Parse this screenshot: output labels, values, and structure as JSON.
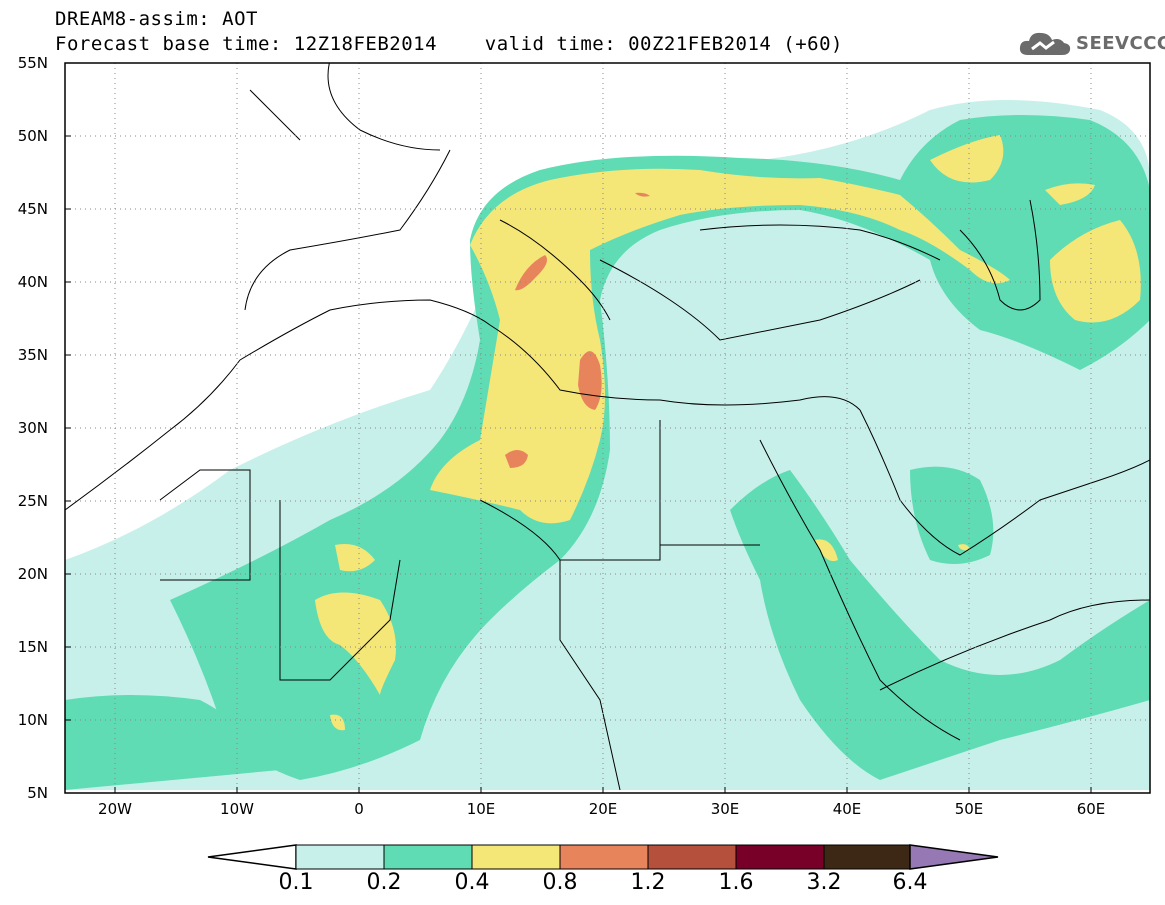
{
  "title": {
    "line1": "DREAM8-assim: AOT",
    "line2": "Forecast base time: 12Z18FEB2014    valid time: 00Z21FEB2014 (+60)"
  },
  "logo": {
    "text": "SEEVCCC",
    "icon": "cloud-icon",
    "color": "#6b6b6b"
  },
  "map": {
    "lat_labels": [
      "55N",
      "50N",
      "45N",
      "40N",
      "35N",
      "30N",
      "25N",
      "20N",
      "15N",
      "10N",
      "5N"
    ],
    "lat_values": [
      55,
      50,
      45,
      40,
      35,
      30,
      25,
      20,
      15,
      10,
      5
    ],
    "lon_labels": [
      "20W",
      "10W",
      "0",
      "10E",
      "20E",
      "30E",
      "40E",
      "50E",
      "60E"
    ],
    "lon_values": [
      -20,
      -10,
      0,
      10,
      20,
      30,
      40,
      50,
      60
    ],
    "lon_range": [
      -25,
      65
    ],
    "lat_range": [
      5,
      55
    ],
    "grid": "dotted"
  },
  "colorbar": {
    "labels": [
      "0.1",
      "0.2",
      "0.4",
      "0.8",
      "1.2",
      "1.6",
      "3.2",
      "6.4"
    ],
    "colors": [
      "#c8f0ea",
      "#5fdcb4",
      "#f5e678",
      "#e8845c",
      "#b4503c",
      "#780028",
      "#3c2814",
      "#9678b4"
    ],
    "under_color": "#ffffff"
  }
}
